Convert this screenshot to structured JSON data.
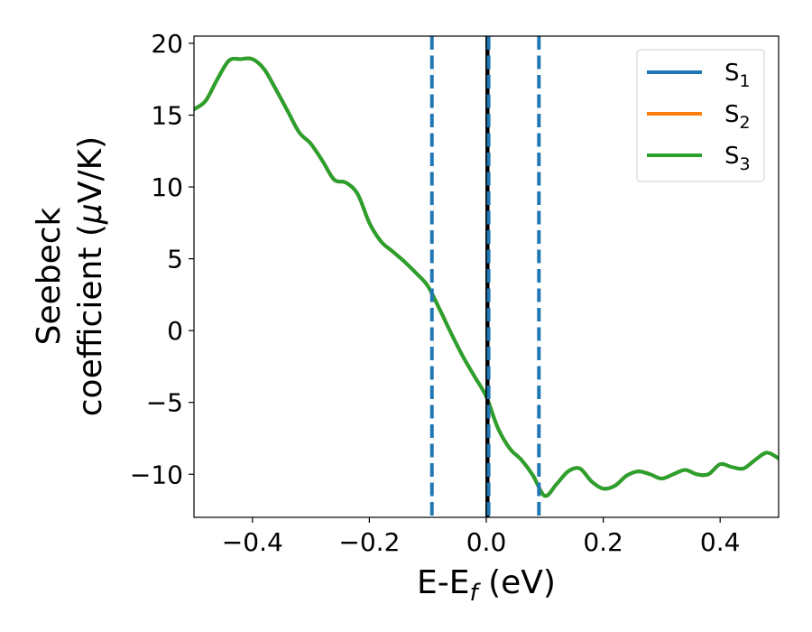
{
  "chart_data": {
    "type": "line",
    "xlabel": "E-E",
    "xlabel_sub": "f",
    "xlabel_unit": " (eV)",
    "ylabel_line1": "Seebeck",
    "ylabel_line2": "coefficient  (",
    "ylabel_mu": "μ",
    "ylabel_unit": "V/K)",
    "xlim": [
      -0.5,
      0.5
    ],
    "ylim": [
      -13,
      20.5
    ],
    "xticks": [
      -0.4,
      -0.2,
      0.0,
      0.2,
      0.4
    ],
    "xtick_labels": [
      "−0.4",
      "−0.2",
      "0.0",
      "0.2",
      "0.4"
    ],
    "yticks": [
      -10,
      -5,
      0,
      5,
      10,
      15,
      20
    ],
    "ytick_labels": [
      "−10",
      "−5",
      "0",
      "5",
      "10",
      "15",
      "20"
    ],
    "legend_position": "top-right",
    "vlines": [
      {
        "x": -0.093,
        "style": "dashed",
        "color": "#1f77b4"
      },
      {
        "x": 0.002,
        "style": "solid",
        "color": "#000000"
      },
      {
        "x": 0.004,
        "style": "dashed",
        "color": "#1f77b4"
      },
      {
        "x": 0.09,
        "style": "dashed",
        "color": "#1f77b4"
      }
    ],
    "x": [
      -0.5,
      -0.48,
      -0.46,
      -0.44,
      -0.42,
      -0.4,
      -0.38,
      -0.36,
      -0.34,
      -0.32,
      -0.3,
      -0.28,
      -0.26,
      -0.24,
      -0.22,
      -0.2,
      -0.18,
      -0.16,
      -0.14,
      -0.12,
      -0.1,
      -0.08,
      -0.06,
      -0.04,
      -0.02,
      0.0,
      0.02,
      0.04,
      0.06,
      0.08,
      0.1,
      0.12,
      0.14,
      0.16,
      0.18,
      0.2,
      0.22,
      0.24,
      0.26,
      0.28,
      0.3,
      0.32,
      0.34,
      0.36,
      0.38,
      0.4,
      0.42,
      0.44,
      0.46,
      0.48,
      0.5
    ],
    "series": [
      {
        "name": "S",
        "sub": "1",
        "color": "#1f77b4",
        "values": [
          15.4,
          16.0,
          17.5,
          18.8,
          18.9,
          18.9,
          18.2,
          16.8,
          15.3,
          13.8,
          13.0,
          11.8,
          10.5,
          10.3,
          9.5,
          7.5,
          6.2,
          5.5,
          4.8,
          4.0,
          3.1,
          1.5,
          -0.2,
          -1.8,
          -3.2,
          -4.6,
          -6.8,
          -8.2,
          -9.0,
          -10.1,
          -11.5,
          -10.7,
          -9.8,
          -9.6,
          -10.5,
          -11.0,
          -10.8,
          -10.1,
          -9.8,
          -10.0,
          -10.3,
          -10.0,
          -9.7,
          -10.0,
          -10.0,
          -9.3,
          -9.5,
          -9.6,
          -9.0,
          -8.5,
          -8.9
        ]
      },
      {
        "name": "S",
        "sub": "2",
        "color": "#ff7f0e",
        "values": [
          15.4,
          16.0,
          17.5,
          18.8,
          18.9,
          18.9,
          18.2,
          16.8,
          15.3,
          13.8,
          13.0,
          11.8,
          10.5,
          10.3,
          9.5,
          7.5,
          6.2,
          5.5,
          4.8,
          4.0,
          3.1,
          1.5,
          -0.2,
          -1.8,
          -3.2,
          -4.6,
          -6.8,
          -8.2,
          -9.0,
          -10.1,
          -11.5,
          -10.7,
          -9.8,
          -9.6,
          -10.5,
          -11.0,
          -10.8,
          -10.1,
          -9.8,
          -10.0,
          -10.3,
          -10.0,
          -9.7,
          -10.0,
          -10.0,
          -9.3,
          -9.5,
          -9.6,
          -9.0,
          -8.5,
          -8.9
        ]
      },
      {
        "name": "S",
        "sub": "3",
        "color": "#2ca02c",
        "values": [
          15.4,
          16.0,
          17.5,
          18.8,
          18.9,
          18.9,
          18.2,
          16.8,
          15.3,
          13.8,
          13.0,
          11.8,
          10.5,
          10.3,
          9.5,
          7.5,
          6.2,
          5.5,
          4.8,
          4.0,
          3.1,
          1.5,
          -0.2,
          -1.8,
          -3.2,
          -4.6,
          -6.8,
          -8.2,
          -9.0,
          -10.1,
          -11.5,
          -10.7,
          -9.8,
          -9.6,
          -10.5,
          -11.0,
          -10.8,
          -10.1,
          -9.8,
          -10.0,
          -10.3,
          -10.0,
          -9.7,
          -10.0,
          -10.0,
          -9.3,
          -9.5,
          -9.6,
          -9.0,
          -8.5,
          -8.9
        ]
      }
    ]
  }
}
